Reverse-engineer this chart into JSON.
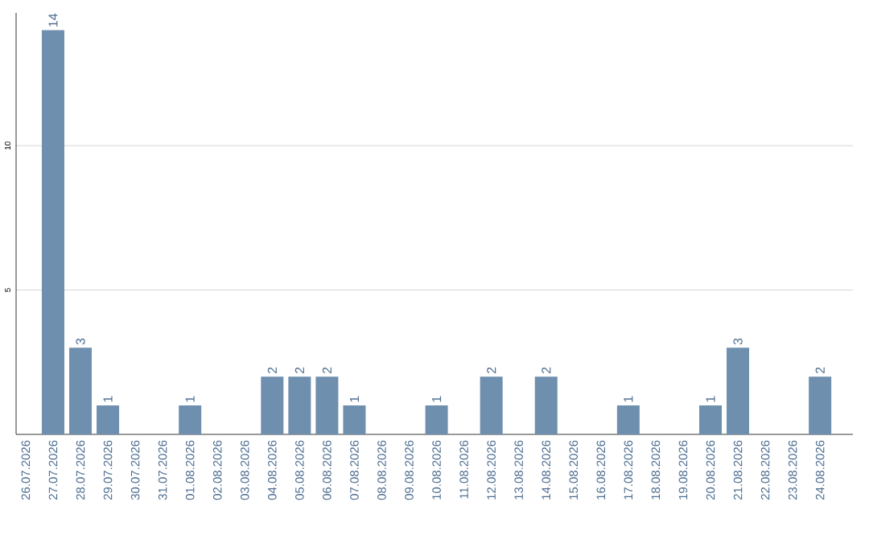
{
  "chart_data": {
    "type": "bar",
    "categories": [
      "26.07.2026",
      "27.07.2026",
      "28.07.2026",
      "29.07.2026",
      "30.07.2026",
      "31.07.2026",
      "01.08.2026",
      "02.08.2026",
      "03.08.2026",
      "04.08.2026",
      "05.08.2026",
      "06.08.2026",
      "07.08.2026",
      "08.08.2026",
      "09.08.2026",
      "10.08.2026",
      "11.08.2026",
      "12.08.2026",
      "13.08.2026",
      "14.08.2026",
      "15.08.2026",
      "16.08.2026",
      "17.08.2026",
      "18.08.2026",
      "19.08.2026",
      "20.08.2026",
      "21.08.2026",
      "22.08.2026",
      "23.08.2026",
      "24.08.2026"
    ],
    "values": [
      null,
      14,
      3,
      1,
      null,
      null,
      1,
      null,
      null,
      2,
      2,
      2,
      1,
      null,
      null,
      1,
      null,
      2,
      null,
      2,
      null,
      null,
      1,
      null,
      null,
      1,
      3,
      null,
      null,
      2
    ],
    "color": "#6e8fae",
    "ylim": [
      0,
      14.6
    ],
    "yticks": [
      5,
      10
    ],
    "grid": "y",
    "data_labels": true
  }
}
